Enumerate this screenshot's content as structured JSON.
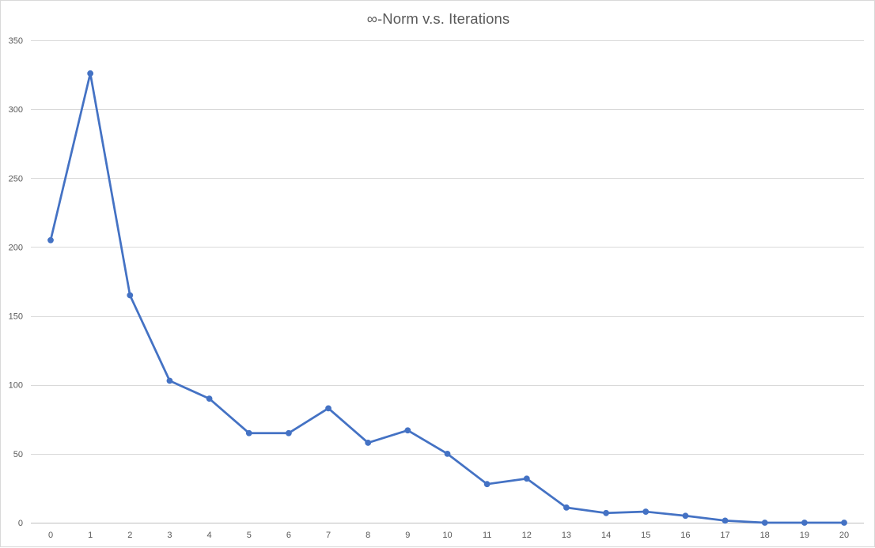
{
  "chart_data": {
    "type": "line",
    "title": "∞-Norm v.s. Iterations",
    "xlabel": "",
    "ylabel": "",
    "x": [
      0,
      1,
      2,
      3,
      4,
      5,
      6,
      7,
      8,
      9,
      10,
      11,
      12,
      13,
      14,
      15,
      16,
      17,
      18,
      19,
      20
    ],
    "series": [
      {
        "values": [
          205,
          326,
          165,
          103,
          90,
          65,
          65,
          83,
          58,
          67,
          50,
          28,
          32,
          11,
          7,
          8,
          5,
          1.5,
          0,
          0,
          0
        ],
        "color": "#4472c4"
      }
    ],
    "ylim": [
      0,
      350
    ],
    "yticks": [
      0,
      50,
      100,
      150,
      200,
      250,
      300,
      350
    ],
    "grid": true,
    "legend": "none",
    "markers": true
  },
  "colors": {
    "series": "#4472c4",
    "grid": "#d9d9d9",
    "axis": "#bfbfbf",
    "text": "#595959"
  }
}
